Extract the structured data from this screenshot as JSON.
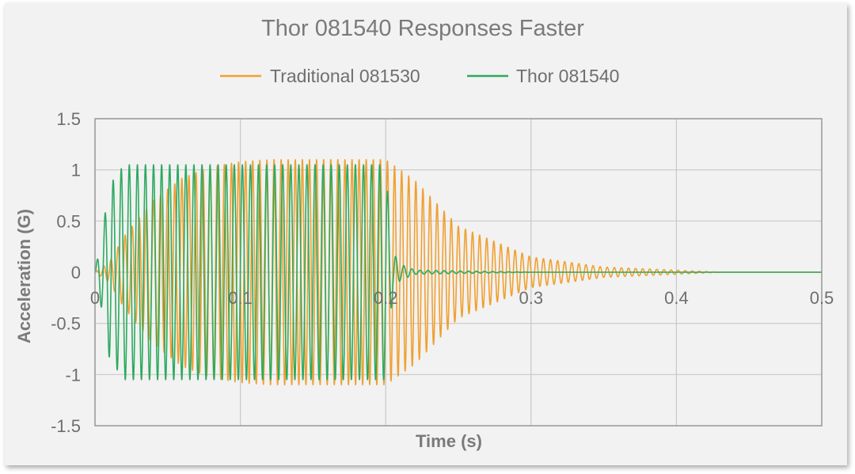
{
  "chart_data": {
    "type": "line",
    "title": "Thor 081540 Responses Faster",
    "xlabel": "Time (s)",
    "ylabel": "Acceleration (G)",
    "xlim": [
      0,
      0.5
    ],
    "ylim": [
      -1.5,
      1.5
    ],
    "x_ticks": [
      "0",
      "0.1",
      "0.2",
      "0.3",
      "0.4",
      "0.5"
    ],
    "y_ticks": [
      "1.5",
      "1",
      "0.5",
      "0",
      "-0.5",
      "-1",
      "-1.5"
    ],
    "grid": true,
    "legend": "top",
    "series": [
      {
        "name": "Traditional 081530",
        "color": "#f0a030",
        "drive_end_s": 0.2,
        "peak_amplitude_g": 1.1,
        "signal_summary": {
          "time_s": [
            0,
            0.01,
            0.02,
            0.04,
            0.06,
            0.08,
            0.1,
            0.12,
            0.14,
            0.16,
            0.18,
            0.2,
            0.22,
            0.25,
            0.3,
            0.35,
            0.4,
            0.43
          ],
          "envelope_g": [
            0,
            0.1,
            0.35,
            0.7,
            0.92,
            1.03,
            1.08,
            1.1,
            1.1,
            1.1,
            1.1,
            1.1,
            0.9,
            0.45,
            0.15,
            0.05,
            0.02,
            0
          ]
        }
      },
      {
        "name": "Thor 081540",
        "color": "#2daa60",
        "drive_end_s": 0.2,
        "peak_amplitude_g": 1.05,
        "signal_summary": {
          "time_s": [
            0,
            0.005,
            0.01,
            0.015,
            0.02,
            0.03,
            0.1,
            0.2,
            0.202,
            0.205,
            0.21,
            0.22,
            0.3,
            0.5
          ],
          "envelope_g": [
            0,
            0.4,
            0.85,
            0.95,
            1.05,
            1.05,
            1.05,
            1.05,
            0.65,
            0.2,
            0.08,
            0.02,
            0,
            0
          ]
        }
      }
    ]
  }
}
